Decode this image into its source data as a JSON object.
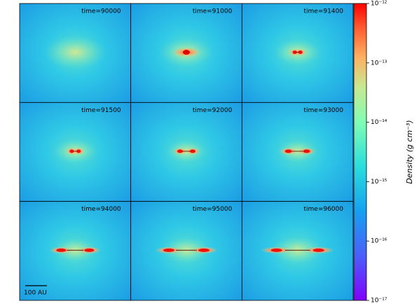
{
  "panels": [
    {
      "label": "time=90000"
    },
    {
      "label": "time=91000"
    },
    {
      "label": "time=91400"
    },
    {
      "label": "time=91500"
    },
    {
      "label": "time=92000"
    },
    {
      "label": "time=93000"
    },
    {
      "label": "time=94000"
    },
    {
      "label": "time=95000"
    },
    {
      "label": "time=96000"
    }
  ],
  "scale_bar": "100 AU",
  "colorbar": {
    "label": "Density (g cm⁻³)",
    "log": true,
    "lim": [
      1e-17,
      1e-12
    ],
    "ticks": [
      {
        "value": 1e-17,
        "label": "10⁻¹⁷"
      },
      {
        "value": 1e-16,
        "label": "10⁻¹⁶"
      },
      {
        "value": 1e-15,
        "label": "10⁻¹⁵"
      },
      {
        "value": 1e-14,
        "label": "10⁻¹⁴"
      },
      {
        "value": 1e-13,
        "label": "10⁻¹³"
      },
      {
        "value": 1e-12,
        "label": "10⁻¹²"
      }
    ]
  }
}
